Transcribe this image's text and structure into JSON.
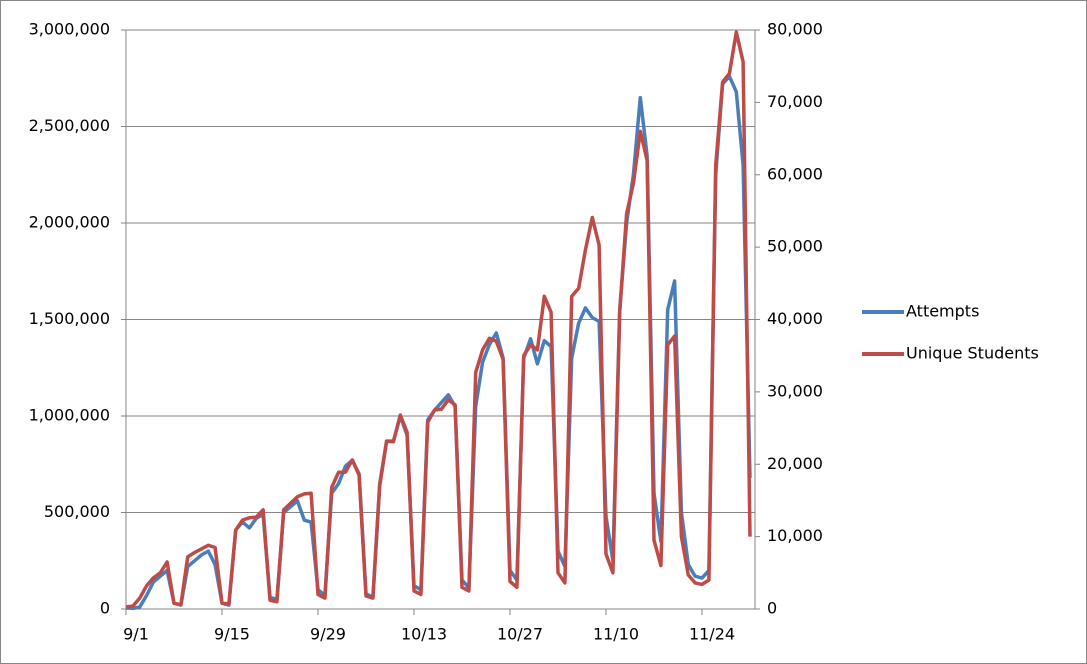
{
  "chart_data": {
    "type": "line",
    "categories": [
      "9/1",
      null,
      null,
      null,
      null,
      null,
      null,
      null,
      null,
      null,
      null,
      null,
      null,
      null,
      "9/15",
      null,
      null,
      null,
      null,
      null,
      null,
      null,
      null,
      null,
      null,
      null,
      null,
      null,
      "9/29",
      null,
      null,
      null,
      null,
      null,
      null,
      null,
      null,
      null,
      null,
      null,
      null,
      null,
      "10/13",
      null,
      null,
      null,
      null,
      null,
      null,
      null,
      null,
      null,
      null,
      null,
      null,
      null,
      "10/27",
      null,
      null,
      null,
      null,
      null,
      null,
      null,
      null,
      null,
      null,
      null,
      null,
      null,
      "11/10",
      null,
      null,
      null,
      null,
      null,
      null,
      null,
      null,
      null,
      null,
      null,
      null,
      null,
      "11/24",
      null,
      null,
      null,
      null,
      null,
      null,
      null
    ],
    "series": [
      {
        "name": "Attempts",
        "color": "#4a7ebb",
        "axis": "y",
        "values": [
          5000,
          3000,
          10000,
          70000,
          140000,
          170000,
          200000,
          30000,
          20000,
          220000,
          250000,
          280000,
          300000,
          230000,
          30000,
          20000,
          410000,
          450000,
          420000,
          470000,
          490000,
          60000,
          50000,
          500000,
          530000,
          560000,
          460000,
          450000,
          100000,
          70000,
          600000,
          650000,
          740000,
          770000,
          700000,
          80000,
          60000,
          650000,
          870000,
          870000,
          1000000,
          900000,
          120000,
          100000,
          980000,
          1030000,
          1070000,
          1110000,
          1050000,
          150000,
          110000,
          1050000,
          1280000,
          1370000,
          1430000,
          1300000,
          200000,
          150000,
          1300000,
          1400000,
          1270000,
          1390000,
          1360000,
          300000,
          220000,
          1300000,
          1480000,
          1560000,
          1510000,
          1490000,
          480000,
          250000,
          1550000,
          2000000,
          2250000,
          2650000,
          2350000,
          600000,
          350000,
          1550000,
          1700000,
          500000,
          230000,
          170000,
          160000,
          200000,
          2250000,
          2720000,
          2760000,
          2680000,
          2300000,
          680000
        ]
      },
      {
        "name": "Unique Students",
        "color": "#be4b48",
        "axis": "y2",
        "values": [
          300,
          400,
          1500,
          3200,
          4300,
          5000,
          6500,
          800,
          600,
          7200,
          7800,
          8300,
          8800,
          8500,
          800,
          700,
          10900,
          12300,
          12600,
          12700,
          13700,
          1200,
          1000,
          13700,
          14600,
          15500,
          15900,
          16000,
          2000,
          1500,
          16800,
          18900,
          18900,
          20600,
          18500,
          1800,
          1500,
          17000,
          23200,
          23100,
          26800,
          24400,
          2500,
          2000,
          25800,
          27500,
          27600,
          28900,
          28200,
          3000,
          2500,
          32700,
          35800,
          37400,
          37000,
          34500,
          3800,
          3000,
          35000,
          36500,
          35800,
          43200,
          41000,
          5000,
          3600,
          43200,
          44300,
          49600,
          54100,
          50300,
          7600,
          5000,
          41000,
          54600,
          58800,
          66000,
          62000,
          9500,
          6000,
          36500,
          37700,
          10000,
          4700,
          3600,
          3400,
          4000,
          61300,
          72800,
          74000,
          79700,
          75600,
          10000
        ]
      }
    ],
    "ylim": [
      0,
      3000000
    ],
    "yticks": [
      0,
      {
        "value": 500000,
        "label": "500,000"
      },
      {
        "value": 1000000,
        "label": "1,000,000"
      },
      {
        "value": 1500000,
        "label": "1,500,000"
      },
      {
        "value": 2000000,
        "label": "2,000,000"
      },
      {
        "value": 2500000,
        "label": "2,500,000"
      },
      {
        "value": 3000000,
        "label": "3,000,000"
      }
    ],
    "y2lim": [
      0,
      80000
    ],
    "y2ticks": [
      0,
      {
        "value": 10000,
        "label": "10,000"
      },
      {
        "value": 20000,
        "label": "20,000"
      },
      {
        "value": 30000,
        "label": "30,000"
      },
      {
        "value": 40000,
        "label": "40,000"
      },
      {
        "value": 50000,
        "label": "50,000"
      },
      {
        "value": 60000,
        "label": "60,000"
      },
      {
        "value": 70000,
        "label": "70,000"
      },
      {
        "value": 80000,
        "label": "80,000"
      }
    ],
    "grid": true,
    "legend": "right"
  }
}
